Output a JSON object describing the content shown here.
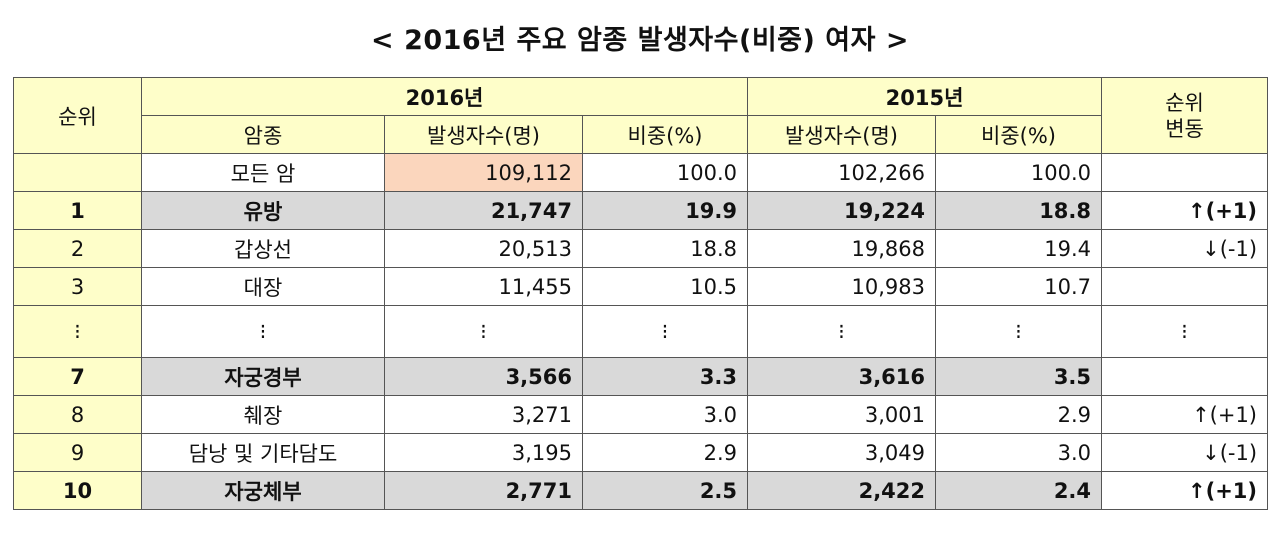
{
  "title": "< 2016년 주요 암종 발생자수(비중) 여자 >",
  "headers": {
    "rank": "순위",
    "year2016": "2016년",
    "year2015": "2015년",
    "rank_change": "순위\n변동",
    "cancer_type": "암종",
    "count_2016": "발생자수(명)",
    "share_2016": "비중(%)",
    "count_2015": "발생자수(명)",
    "share_2015": "비중(%)"
  },
  "total": {
    "label": "모든 암",
    "count_2016": "109,112",
    "share_2016": "100.0",
    "count_2015": "102,266",
    "share_2015": "100.0"
  },
  "rows": [
    {
      "rank": "1",
      "cancer": "유방",
      "count_2016": "21,747",
      "share_2016": "19.9",
      "count_2015": "19,224",
      "share_2015": "18.8",
      "change": "↑(+1)"
    },
    {
      "rank": "2",
      "cancer": "갑상선",
      "count_2016": "20,513",
      "share_2016": "18.8",
      "count_2015": "19,868",
      "share_2015": "19.4",
      "change": "↓(-1)"
    },
    {
      "rank": "3",
      "cancer": "대장",
      "count_2016": "11,455",
      "share_2016": "10.5",
      "count_2015": "10,983",
      "share_2015": "10.7",
      "change": ""
    },
    {
      "rank": "⁝",
      "cancer": "⁝",
      "count_2016": "⁝",
      "share_2016": "⁝",
      "count_2015": "⁝",
      "share_2015": "⁝",
      "change": "⁝"
    },
    {
      "rank": "7",
      "cancer": "자궁경부",
      "count_2016": "3,566",
      "share_2016": "3.3",
      "count_2015": "3,616",
      "share_2015": "3.5",
      "change": ""
    },
    {
      "rank": "8",
      "cancer": "췌장",
      "count_2016": "3,271",
      "share_2016": "3.0",
      "count_2015": "3,001",
      "share_2015": "2.9",
      "change": "↑(+1)"
    },
    {
      "rank": "9",
      "cancer": "담낭 및 기타담도",
      "count_2016": "3,195",
      "share_2016": "2.9",
      "count_2015": "3,049",
      "share_2015": "3.0",
      "change": "↓(-1)"
    },
    {
      "rank": "10",
      "cancer": "자궁체부",
      "count_2016": "2,771",
      "share_2016": "2.5",
      "count_2015": "2,422",
      "share_2015": "2.4",
      "change": "↑(+1)"
    }
  ],
  "colors": {
    "header_yellow": "#fefec9",
    "highlight_gray": "#d9d9d9",
    "total_count_peach": "#fbd6bd"
  }
}
